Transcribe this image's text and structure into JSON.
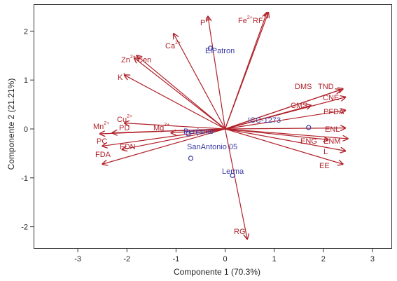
{
  "chart_data": {
    "type": "scatter",
    "subtype": "biplot",
    "title": "",
    "xlabel": "Componente 1 (70.3%)",
    "ylabel": "Componente 2 (21.21%)",
    "xlim": [
      -3.9,
      3.4
    ],
    "ylim": [
      -2.45,
      2.55
    ],
    "xticks": [
      -3,
      -2,
      -1,
      0,
      1,
      2,
      3
    ],
    "yticks": [
      -2,
      -1,
      0,
      1,
      2
    ],
    "grid": false,
    "colors": {
      "vector": "#b0222a",
      "point": "#3a3aa6",
      "axis": "#333333"
    },
    "vectors": [
      {
        "name": "P",
        "sup": "5+",
        "x": -0.35,
        "y": 2.3
      },
      {
        "name": "Fe",
        "sup": "2+",
        "x": 0.85,
        "y": 2.38
      },
      {
        "name": "RF",
        "sup": "",
        "x": 0.88,
        "y": 2.38
      },
      {
        "name": "Ca",
        "sup": "2+",
        "x": -1.05,
        "y": 1.95
      },
      {
        "name": "Zn",
        "sup": "2+",
        "x": -1.85,
        "y": 1.45
      },
      {
        "name": "Cen",
        "sup": "",
        "x": -1.8,
        "y": 1.5
      },
      {
        "name": "K",
        "sup": "+",
        "x": -2.05,
        "y": 1.1
      },
      {
        "name": "DMS",
        "sup": "",
        "x": 2.35,
        "y": 0.8
      },
      {
        "name": "TND",
        "sup": "",
        "x": 2.4,
        "y": 0.82
      },
      {
        "name": "CNE",
        "sup": "",
        "x": 2.45,
        "y": 0.65
      },
      {
        "name": "CMS",
        "sup": "",
        "x": 1.75,
        "y": 0.48
      },
      {
        "name": "PFDA",
        "sup": "",
        "x": 2.45,
        "y": 0.38
      },
      {
        "name": "ENL",
        "sup": "",
        "x": 2.45,
        "y": 0.02
      },
      {
        "name": "ENG",
        "sup": "",
        "x": 2.1,
        "y": -0.22
      },
      {
        "name": "ENM",
        "sup": "",
        "x": 2.5,
        "y": -0.2
      },
      {
        "name": "L",
        "sup": "",
        "x": 2.45,
        "y": -0.45
      },
      {
        "name": "EE",
        "sup": "",
        "x": 2.4,
        "y": -0.72
      },
      {
        "name": "Mn",
        "sup": "2+",
        "x": -2.55,
        "y": -0.1
      },
      {
        "name": "Cu",
        "sup": "2+",
        "x": -2.05,
        "y": 0.12
      },
      {
        "name": "PD",
        "sup": "",
        "x": -2.3,
        "y": -0.08
      },
      {
        "name": "Mg",
        "sup": "2+",
        "x": -1.1,
        "y": -0.08
      },
      {
        "name": "PC",
        "sup": "",
        "x": -2.5,
        "y": -0.35
      },
      {
        "name": "FDN",
        "sup": "",
        "x": -2.1,
        "y": -0.42
      },
      {
        "name": "FDA",
        "sup": "",
        "x": -2.5,
        "y": -0.72
      },
      {
        "name": "RG",
        "sup": "",
        "x": 0.45,
        "y": -2.25
      }
    ],
    "points": [
      {
        "name": "ElPatron",
        "x": -0.3,
        "y": 1.65
      },
      {
        "name": "ICC-1273",
        "x": 1.7,
        "y": 0.03
      },
      {
        "name": "Penjamo",
        "x": -0.75,
        "y": -0.1
      },
      {
        "name": "SanAntonio 05",
        "x": -0.7,
        "y": -0.6
      },
      {
        "name": "Lerma",
        "x": 0.15,
        "y": -0.95
      }
    ]
  }
}
